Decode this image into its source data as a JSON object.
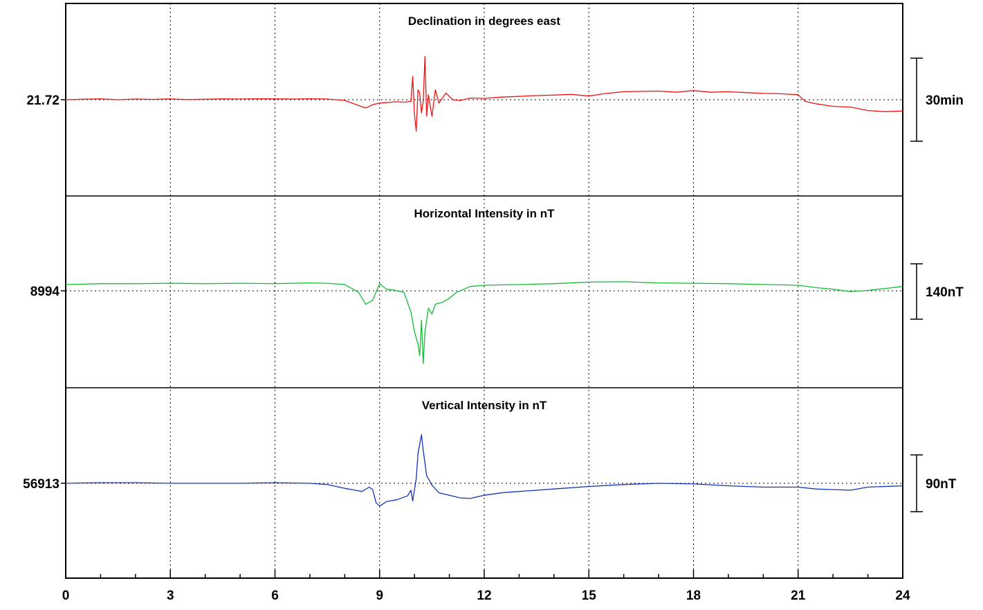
{
  "chart_data": {
    "type": "line",
    "x_ticks": [
      "0",
      "3",
      "6",
      "9",
      "12",
      "15",
      "18",
      "21",
      "24"
    ],
    "xlim": [
      0,
      24
    ],
    "grid": true,
    "panels": [
      {
        "title": "Declination in degrees east",
        "baseline_label": "21.72",
        "baseline": 21.72,
        "scale_label": "30min",
        "scale_value": 0.5,
        "unit": "degrees",
        "color": "#ee1111",
        "points": [
          [
            0,
            21.72
          ],
          [
            0.5,
            21.723
          ],
          [
            1,
            21.725
          ],
          [
            1.5,
            21.72
          ],
          [
            2,
            21.724
          ],
          [
            2.5,
            21.722
          ],
          [
            3,
            21.725
          ],
          [
            3.5,
            21.721
          ],
          [
            4,
            21.723
          ],
          [
            4.5,
            21.725
          ],
          [
            5,
            21.724
          ],
          [
            5.5,
            21.726
          ],
          [
            6,
            21.725
          ],
          [
            6.5,
            21.724
          ],
          [
            7,
            21.726
          ],
          [
            7.5,
            21.724
          ],
          [
            8,
            21.716
          ],
          [
            8.4,
            21.685
          ],
          [
            8.6,
            21.67
          ],
          [
            8.8,
            21.69
          ],
          [
            9.0,
            21.7
          ],
          [
            9.2,
            21.703
          ],
          [
            9.5,
            21.708
          ],
          [
            9.7,
            21.705
          ],
          [
            9.9,
            21.71
          ],
          [
            9.95,
            21.86
          ],
          [
            10.0,
            21.63
          ],
          [
            10.05,
            21.53
          ],
          [
            10.1,
            21.78
          ],
          [
            10.15,
            21.76
          ],
          [
            10.2,
            21.64
          ],
          [
            10.25,
            21.71
          ],
          [
            10.3,
            21.98
          ],
          [
            10.35,
            21.62
          ],
          [
            10.4,
            21.75
          ],
          [
            10.5,
            21.62
          ],
          [
            10.6,
            21.78
          ],
          [
            10.7,
            21.7
          ],
          [
            10.9,
            21.76
          ],
          [
            11.1,
            21.72
          ],
          [
            11.3,
            21.715
          ],
          [
            11.6,
            21.73
          ],
          [
            12,
            21.728
          ],
          [
            12.5,
            21.736
          ],
          [
            13,
            21.74
          ],
          [
            13.5,
            21.745
          ],
          [
            14,
            21.748
          ],
          [
            14.5,
            21.752
          ],
          [
            15,
            21.742
          ],
          [
            15.5,
            21.758
          ],
          [
            16,
            21.768
          ],
          [
            16.5,
            21.77
          ],
          [
            17,
            21.772
          ],
          [
            17.5,
            21.765
          ],
          [
            18,
            21.775
          ],
          [
            18.5,
            21.765
          ],
          [
            19,
            21.768
          ],
          [
            19.5,
            21.763
          ],
          [
            20,
            21.758
          ],
          [
            20.5,
            21.756
          ],
          [
            21,
            21.75
          ],
          [
            21.2,
            21.71
          ],
          [
            21.5,
            21.696
          ],
          [
            22,
            21.68
          ],
          [
            22.5,
            21.676
          ],
          [
            23,
            21.655
          ],
          [
            23.5,
            21.648
          ],
          [
            24,
            21.652
          ]
        ]
      },
      {
        "title": "Horizontal Intensity in nT",
        "baseline_label": "8994",
        "baseline": 8994,
        "scale_label": "140nT",
        "scale_value": 140,
        "unit": "nT",
        "color": "#11bb33",
        "points": [
          [
            0,
            9010
          ],
          [
            1,
            9012
          ],
          [
            2,
            9012
          ],
          [
            3,
            9013
          ],
          [
            4,
            9012
          ],
          [
            5,
            9013
          ],
          [
            6,
            9012
          ],
          [
            7,
            9014
          ],
          [
            7.5,
            9013
          ],
          [
            8,
            9010
          ],
          [
            8.4,
            8990
          ],
          [
            8.6,
            8960
          ],
          [
            8.8,
            8970
          ],
          [
            9.0,
            9012
          ],
          [
            9.2,
            8998
          ],
          [
            9.4,
            8996
          ],
          [
            9.7,
            8990
          ],
          [
            9.9,
            8940
          ],
          [
            10.0,
            8890
          ],
          [
            10.1,
            8860
          ],
          [
            10.15,
            8830
          ],
          [
            10.2,
            8920
          ],
          [
            10.25,
            8810
          ],
          [
            10.3,
            8890
          ],
          [
            10.4,
            8950
          ],
          [
            10.5,
            8935
          ],
          [
            10.6,
            8960
          ],
          [
            10.8,
            8965
          ],
          [
            11,
            8975
          ],
          [
            11.2,
            8990
          ],
          [
            11.6,
            9005
          ],
          [
            12,
            9008
          ],
          [
            13,
            9010
          ],
          [
            14,
            9012
          ],
          [
            15,
            9016
          ],
          [
            16,
            9017
          ],
          [
            17,
            9014
          ],
          [
            18,
            9013
          ],
          [
            19,
            9012
          ],
          [
            20,
            9010
          ],
          [
            21,
            9008
          ],
          [
            21.5,
            9002
          ],
          [
            22,
            8998
          ],
          [
            22.5,
            8992
          ],
          [
            23,
            8995
          ],
          [
            23.5,
            9000
          ],
          [
            24,
            9005
          ]
        ]
      },
      {
        "title": "Vertical Intensity in nT",
        "baseline_label": "56913",
        "baseline": 56913,
        "scale_label": "90nT",
        "scale_value": 90,
        "unit": "nT",
        "color": "#1133bb",
        "points": [
          [
            0,
            56913
          ],
          [
            1,
            56914
          ],
          [
            2,
            56914
          ],
          [
            3,
            56913
          ],
          [
            4,
            56913
          ],
          [
            5,
            56913
          ],
          [
            6,
            56914
          ],
          [
            7,
            56913
          ],
          [
            7.5,
            56911
          ],
          [
            8,
            56905
          ],
          [
            8.3,
            56902
          ],
          [
            8.5,
            56900
          ],
          [
            8.7,
            56907
          ],
          [
            8.8,
            56903
          ],
          [
            8.9,
            56882
          ],
          [
            9.0,
            56877
          ],
          [
            9.2,
            56884
          ],
          [
            9.5,
            56887
          ],
          [
            9.8,
            56893
          ],
          [
            9.9,
            56902
          ],
          [
            9.95,
            56885
          ],
          [
            10.05,
            56920
          ],
          [
            10.1,
            56960
          ],
          [
            10.2,
            56990
          ],
          [
            10.25,
            56965
          ],
          [
            10.35,
            56925
          ],
          [
            10.5,
            56910
          ],
          [
            10.7,
            56898
          ],
          [
            11,
            56894
          ],
          [
            11.3,
            56890
          ],
          [
            11.6,
            56889
          ],
          [
            12,
            56894
          ],
          [
            12.5,
            56898
          ],
          [
            13,
            56900
          ],
          [
            14,
            56904
          ],
          [
            15,
            56908
          ],
          [
            16,
            56911
          ],
          [
            17,
            56913
          ],
          [
            18,
            56912
          ],
          [
            19,
            56909
          ],
          [
            20,
            56907
          ],
          [
            21,
            56907
          ],
          [
            21.5,
            56904
          ],
          [
            22,
            56903
          ],
          [
            22.5,
            56902
          ],
          [
            23,
            56907
          ],
          [
            24,
            56909
          ]
        ]
      }
    ]
  }
}
